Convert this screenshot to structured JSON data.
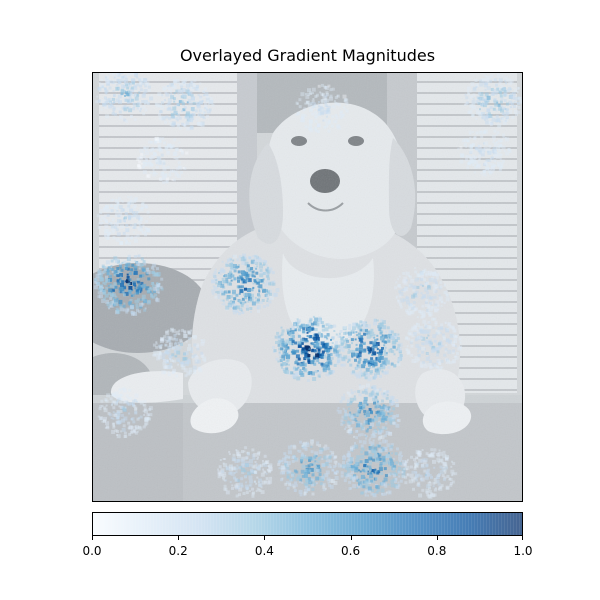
{
  "chart_data": {
    "type": "heatmap",
    "title": "Overlayed Gradient Magnitudes",
    "background_image": "grayscale photo of a golden retriever dog lying on a step in front of white shutters",
    "colormap": "Blues",
    "colormap_stops": [
      "#f7fbff",
      "#deebf7",
      "#c6dbef",
      "#9ecae1",
      "#6baed6",
      "#4292c6",
      "#2171b5",
      "#08519c",
      "#08306b"
    ],
    "grid": false,
    "axes_ticks": false,
    "xlim": [
      0,
      1
    ],
    "ylim": [
      0,
      1
    ],
    "colorbar": {
      "orientation": "horizontal",
      "placement": "bottom",
      "range": [
        0.0,
        1.0
      ],
      "tick_labels": [
        "0.0",
        "0.2",
        "0.4",
        "0.6",
        "0.8",
        "1.0"
      ],
      "tick_values": [
        0.0,
        0.2,
        0.4,
        0.6,
        0.8,
        1.0
      ]
    },
    "hotspots": [
      {
        "x": 0.07,
        "y": 0.95,
        "intensity": 0.45
      },
      {
        "x": 0.21,
        "y": 0.93,
        "intensity": 0.45
      },
      {
        "x": 0.93,
        "y": 0.94,
        "intensity": 0.45
      },
      {
        "x": 0.53,
        "y": 0.92,
        "intensity": 0.25
      },
      {
        "x": 0.07,
        "y": 0.66,
        "intensity": 0.3
      },
      {
        "x": 0.08,
        "y": 0.51,
        "intensity": 0.85
      },
      {
        "x": 0.35,
        "y": 0.51,
        "intensity": 0.8
      },
      {
        "x": 0.76,
        "y": 0.49,
        "intensity": 0.35
      },
      {
        "x": 0.5,
        "y": 0.36,
        "intensity": 1.0
      },
      {
        "x": 0.64,
        "y": 0.36,
        "intensity": 0.85
      },
      {
        "x": 0.79,
        "y": 0.37,
        "intensity": 0.4
      },
      {
        "x": 0.2,
        "y": 0.35,
        "intensity": 0.35
      },
      {
        "x": 0.64,
        "y": 0.21,
        "intensity": 0.65
      },
      {
        "x": 0.07,
        "y": 0.21,
        "intensity": 0.3
      },
      {
        "x": 0.5,
        "y": 0.08,
        "intensity": 0.6
      },
      {
        "x": 0.65,
        "y": 0.08,
        "intensity": 0.75
      },
      {
        "x": 0.35,
        "y": 0.07,
        "intensity": 0.35
      },
      {
        "x": 0.78,
        "y": 0.07,
        "intensity": 0.3
      },
      {
        "x": 0.91,
        "y": 0.82,
        "intensity": 0.25
      },
      {
        "x": 0.16,
        "y": 0.8,
        "intensity": 0.2
      }
    ]
  }
}
